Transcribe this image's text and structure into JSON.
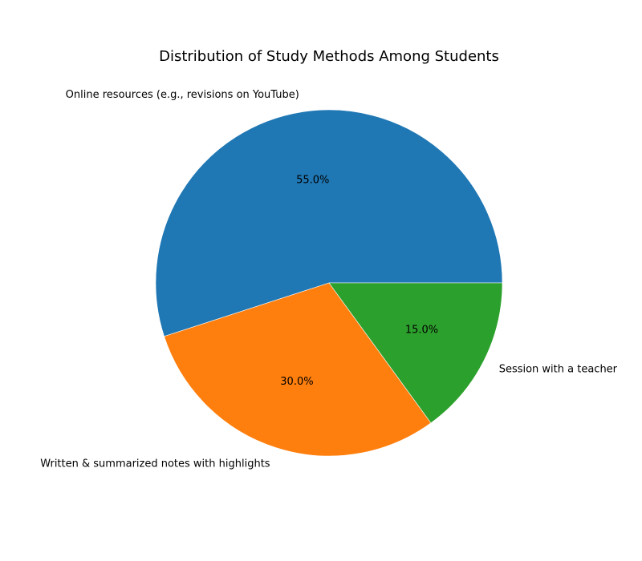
{
  "chart_data": {
    "type": "pie",
    "title": "Distribution of Study Methods Among Students",
    "categories": [
      "Online resources (e.g., revisions on YouTube)",
      "Written & summarized notes with highlights",
      "Session with a teacher"
    ],
    "values": [
      55,
      30,
      15
    ],
    "percent_labels": [
      "55.0%",
      "30.0%",
      "15.0%"
    ],
    "colors": [
      "#1f77b4",
      "#ff7f0e",
      "#2ca02c"
    ],
    "start_angle_deg": 0,
    "direction": "counterclockwise",
    "legend": "none"
  }
}
